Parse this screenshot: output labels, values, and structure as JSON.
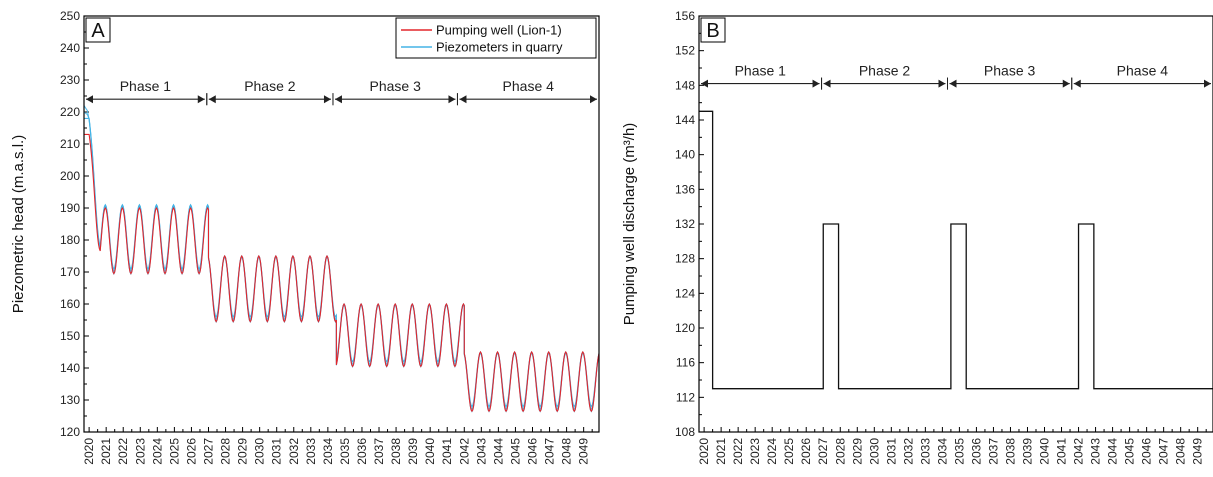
{
  "chart_data": [
    {
      "panel": "A",
      "type": "line",
      "ylabel": "Piezometric head (m.a.s.l.)",
      "ylim": [
        120,
        250
      ],
      "xlim": [
        2019.7,
        2049.9
      ],
      "yticks": [
        120,
        130,
        140,
        150,
        160,
        170,
        180,
        190,
        200,
        210,
        220,
        230,
        240,
        250
      ],
      "xticks": [
        2020,
        2021,
        2022,
        2023,
        2024,
        2025,
        2026,
        2027,
        2028,
        2029,
        2030,
        2031,
        2032,
        2033,
        2034,
        2035,
        2036,
        2037,
        2038,
        2039,
        2040,
        2041,
        2042,
        2043,
        2044,
        2045,
        2046,
        2047,
        2048,
        2049
      ],
      "legend_position": "top-right",
      "phases": [
        {
          "label": "Phase 1",
          "start": 2019.7,
          "end": 2026.9
        },
        {
          "label": "Phase 2",
          "start": 2026.9,
          "end": 2034.3
        },
        {
          "label": "Phase 3",
          "start": 2034.3,
          "end": 2041.6
        },
        {
          "label": "Phase 4",
          "start": 2041.6,
          "end": 2049.9
        }
      ],
      "phase_arrow_y": 224,
      "series": [
        {
          "name": "Pumping well (Lion-1)",
          "color": "#e3262b",
          "start_value": 213,
          "first_trough": 174,
          "segments": [
            {
              "start": 2020,
              "end": 2027,
              "peak": 190,
              "trough": 169.5
            },
            {
              "start": 2027,
              "end": 2034.5,
              "peak": 175,
              "trough": 154.5
            },
            {
              "start": 2034.5,
              "end": 2042,
              "peak": 160,
              "trough": 140.5
            },
            {
              "start": 2042,
              "end": 2050,
              "peak": 145,
              "trough": 126.5
            }
          ]
        },
        {
          "name": "Piezometers in quarry",
          "color": "#45b4e6",
          "start_value": 218,
          "first_trough": 176,
          "spread": [
            0,
            2,
            4
          ],
          "segments": [
            {
              "start": 2020,
              "end": 2027,
              "peak": 191,
              "trough": 171
            },
            {
              "start": 2027,
              "end": 2034.5,
              "peak": 175,
              "trough": 156
            },
            {
              "start": 2034.5,
              "end": 2042,
              "peak": 160,
              "trough": 142
            },
            {
              "start": 2042,
              "end": 2050,
              "peak": 145,
              "trough": 128
            }
          ]
        }
      ]
    },
    {
      "panel": "B",
      "type": "line",
      "ylabel": "Pumping well discharge (m³/h)",
      "ylim": [
        108,
        156
      ],
      "xlim": [
        2019.7,
        2049.9
      ],
      "yticks": [
        108,
        112,
        116,
        120,
        124,
        128,
        132,
        136,
        140,
        144,
        148,
        152,
        156
      ],
      "xticks": [
        2020,
        2021,
        2022,
        2023,
        2024,
        2025,
        2026,
        2027,
        2028,
        2029,
        2030,
        2031,
        2032,
        2033,
        2034,
        2035,
        2036,
        2037,
        2038,
        2039,
        2040,
        2041,
        2042,
        2043,
        2044,
        2045,
        2046,
        2047,
        2048,
        2049
      ],
      "phases": [
        {
          "label": "Phase 1",
          "start": 2019.7,
          "end": 2026.9
        },
        {
          "label": "Phase 2",
          "start": 2026.9,
          "end": 2034.3
        },
        {
          "label": "Phase 3",
          "start": 2034.3,
          "end": 2041.6
        },
        {
          "label": "Phase 4",
          "start": 2041.6,
          "end": 2049.9
        }
      ],
      "phase_arrow_y": 148.2,
      "series": [
        {
          "name": "Pumping well discharge",
          "color": "#111111",
          "x": [
            2019.7,
            2020.5,
            2020.5,
            2027.0,
            2027.0,
            2027.9,
            2027.9,
            2034.5,
            2034.5,
            2035.4,
            2035.4,
            2042.0,
            2042.0,
            2042.9,
            2042.9,
            2049.9
          ],
          "y": [
            145,
            145,
            113,
            113,
            132,
            132,
            113,
            113,
            132,
            132,
            113,
            113,
            132,
            132,
            113,
            113
          ]
        }
      ]
    }
  ],
  "labels": {
    "panel_a": "A",
    "panel_b": "B",
    "ylabel_a": "Piezometric head (m.a.s.l.)",
    "ylabel_b": "Pumping well discharge (m³/h)",
    "legend_1": "Pumping well (Lion-1)",
    "legend_2": "Piezometers in quarry",
    "phase_1": "Phase 1",
    "phase_2": "Phase 2",
    "phase_3": "Phase 3",
    "phase_4": "Phase 4"
  }
}
